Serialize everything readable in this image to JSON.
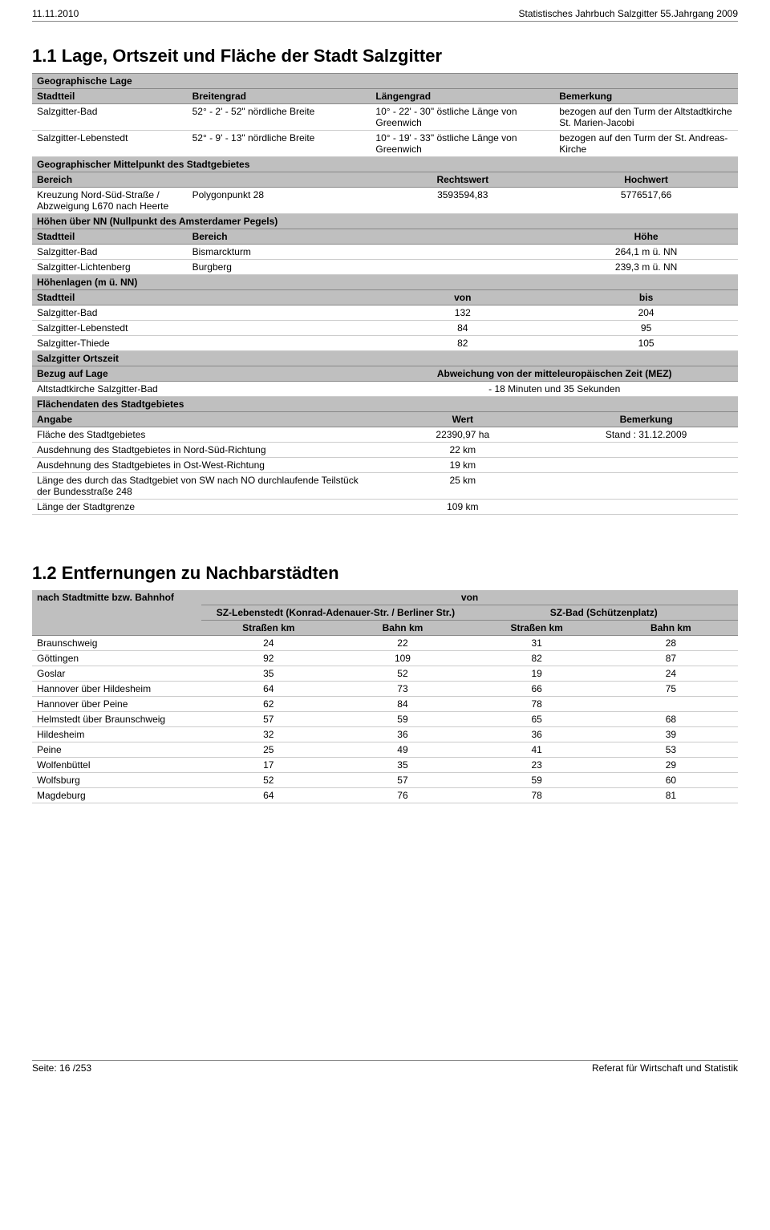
{
  "header": {
    "left": "11.11.2010",
    "right": "Statistisches Jahrbuch Salzgitter 55.Jahrgang 2009"
  },
  "footer": {
    "left": "Seite: 16 /253",
    "right": "Referat für Wirtschaft und Statistik"
  },
  "s1": {
    "title": "1.1 Lage, Ortszeit und Fläche der Stadt Salzgitter",
    "geo_lage_hdr": "Geographische Lage",
    "cols1": {
      "a": "Stadtteil",
      "b": "Breitengrad",
      "c": "Längengrad",
      "d": "Bemerkung"
    },
    "r1": {
      "a": "Salzgitter-Bad",
      "b": "52° -  2' - 52\" nördliche Breite",
      "c": "10° - 22' - 30\" östliche Länge von Greenwich",
      "d": "bezogen auf den Turm der Altstadtkirche St. Marien-Jacobi"
    },
    "r2": {
      "a": "Salzgitter-Lebenstedt",
      "b": "52° -  9' - 13\" nördliche Breite",
      "c": "10° - 19' - 33\" östliche Länge von Greenwich",
      "d": "bezogen auf den Turm der St. Andreas-Kirche"
    },
    "geo_mp_hdr": "Geographischer Mittelpunkt des Stadtgebietes",
    "cols2": {
      "a": "Bereich",
      "b": "Rechtswert",
      "c": "Hochwert"
    },
    "mp": {
      "a": "Kreuzung Nord-Süd-Straße / Abzweigung L670 nach Heerte",
      "b": "Polygonpunkt 28",
      "c": "3593594,83",
      "d": "5776517,66"
    },
    "hoehen_hdr": "Höhen über NN (Nullpunkt des Amsterdamer Pegels)",
    "cols3": {
      "a": "Stadtteil",
      "b": "Bereich",
      "c": "Höhe"
    },
    "h1": {
      "a": "Salzgitter-Bad",
      "b": "Bismarckturm",
      "c": "264,1 m ü. NN"
    },
    "h2": {
      "a": "Salzgitter-Lichtenberg",
      "b": "Burgberg",
      "c": "239,3 m ü. NN"
    },
    "hlagen_hdr": "Höhenlagen (m ü. NN)",
    "cols4": {
      "a": "Stadtteil",
      "b": "von",
      "c": "bis"
    },
    "hl1": {
      "a": "Salzgitter-Bad",
      "b": "132",
      "c": "204"
    },
    "hl2": {
      "a": "Salzgitter-Lebenstedt",
      "b": "84",
      "c": "95"
    },
    "hl3": {
      "a": "Salzgitter-Thiede",
      "b": "82",
      "c": "105"
    },
    "ortszeit_hdr": "Salzgitter Ortszeit",
    "cols5": {
      "a": "Bezug auf Lage",
      "b": "Abweichung von der mitteleuropäischen Zeit (MEZ)"
    },
    "oz": {
      "a": "Altstadtkirche Salzgitter-Bad",
      "b": "- 18 Minuten und 35 Sekunden"
    },
    "flaechen_hdr": "Flächendaten des Stadtgebietes",
    "cols6": {
      "a": "Angabe",
      "b": "Wert",
      "c": "Bemerkung"
    },
    "f1": {
      "a": "Fläche des Stadtgebietes",
      "b": "22390,97 ha",
      "c": "Stand : 31.12.2009"
    },
    "f2": {
      "a": "Ausdehnung des Stadtgebietes in Nord-Süd-Richtung",
      "b": "22 km",
      "c": ""
    },
    "f3": {
      "a": "Ausdehnung des Stadtgebietes in Ost-West-Richtung",
      "b": "19 km",
      "c": ""
    },
    "f4": {
      "a": "Länge des durch das Stadtgebiet von SW nach NO durchlaufende Teilstück der Bundesstraße 248",
      "b": "25 km",
      "c": ""
    },
    "f5": {
      "a": "Länge der Stadtgrenze",
      "b": "109 km",
      "c": ""
    }
  },
  "s2": {
    "title": "1.2 Entfernungen zu Nachbarstädten",
    "nach": "nach Stadtmitte bzw. Bahnhof",
    "von": "von",
    "leb": "SZ-Lebenstedt (Konrad-Adenauer-Str. / Berliner Str.)",
    "bad": "SZ-Bad (Schützenplatz)",
    "str": "Straßen km",
    "bahn": "Bahn km",
    "rows": [
      {
        "a": "Braunschweig",
        "b": "24",
        "c": "22",
        "d": "31",
        "e": "28"
      },
      {
        "a": "Göttingen",
        "b": "92",
        "c": "109",
        "d": "82",
        "e": "87"
      },
      {
        "a": "Goslar",
        "b": "35",
        "c": "52",
        "d": "19",
        "e": "24"
      },
      {
        "a": "Hannover über Hildesheim",
        "b": "64",
        "c": "73",
        "d": "66",
        "e": "75"
      },
      {
        "a": "Hannover über Peine",
        "b": "62",
        "c": "84",
        "d": "78",
        "e": ""
      },
      {
        "a": "Helmstedt über Braunschweig",
        "b": "57",
        "c": "59",
        "d": "65",
        "e": "68"
      },
      {
        "a": "Hildesheim",
        "b": "32",
        "c": "36",
        "d": "36",
        "e": "39"
      },
      {
        "a": "Peine",
        "b": "25",
        "c": "49",
        "d": "41",
        "e": "53"
      },
      {
        "a": "Wolfenbüttel",
        "b": "17",
        "c": "35",
        "d": "23",
        "e": "29"
      },
      {
        "a": "Wolfsburg",
        "b": "52",
        "c": "57",
        "d": "59",
        "e": "60"
      },
      {
        "a": "Magdeburg",
        "b": "64",
        "c": "76",
        "d": "78",
        "e": "81"
      }
    ]
  }
}
